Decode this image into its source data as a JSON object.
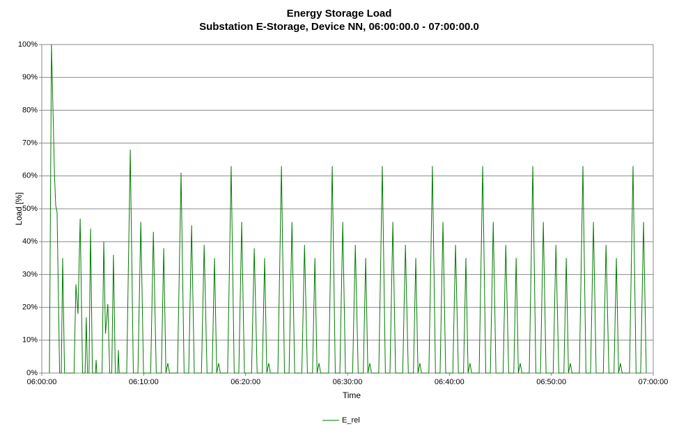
{
  "chart_data": {
    "type": "line",
    "title": "Energy Storage Load",
    "subtitle": "Substation E-Storage, Device NN, 06:00:00.0 - 07:00:00.0",
    "xlabel": "Time",
    "ylabel": "Load [%]",
    "x": [
      "06:00:45",
      "06:00:57",
      "06:01:15",
      "06:01:22",
      "06:01:30",
      "06:01:45",
      "06:01:55",
      "06:02:03",
      "06:02:14",
      "06:03:10",
      "06:03:21",
      "06:03:33",
      "06:03:46",
      "06:04:00",
      "06:04:15",
      "06:04:22",
      "06:04:29",
      "06:04:38",
      "06:04:47",
      "06:04:58",
      "06:05:16",
      "06:05:20",
      "06:05:24",
      "06:05:55",
      "06:06:05",
      "06:06:15",
      "06:06:29",
      "06:06:40",
      "06:06:52",
      "06:07:02",
      "06:07:13",
      "06:07:27",
      "06:07:31",
      "06:07:36",
      "06:08:20",
      "06:08:41",
      "06:08:59",
      "06:09:26",
      "06:09:43",
      "06:09:59",
      "06:10:41",
      "06:10:57",
      "06:11:14",
      "06:11:44",
      "06:11:58",
      "06:12:11",
      "06:12:22",
      "06:12:32",
      "06:13:19",
      "06:13:40",
      "06:13:58",
      "06:14:25",
      "06:14:42",
      "06:14:58",
      "06:15:40",
      "06:15:56",
      "06:16:13",
      "06:16:43",
      "06:16:57",
      "06:17:10",
      "06:17:21",
      "06:17:31",
      "06:18:14",
      "06:18:35",
      "06:18:53",
      "06:19:20",
      "06:19:37",
      "06:19:53",
      "06:20:35",
      "06:20:51",
      "06:21:08",
      "06:21:38",
      "06:21:52",
      "06:22:05",
      "06:22:16",
      "06:22:26",
      "06:23:10",
      "06:23:31",
      "06:23:49",
      "06:24:16",
      "06:24:33",
      "06:24:49",
      "06:25:31",
      "06:25:47",
      "06:26:04",
      "06:26:34",
      "06:26:48",
      "06:27:01",
      "06:27:12",
      "06:27:22",
      "06:28:09",
      "06:28:30",
      "06:28:48",
      "06:29:15",
      "06:29:32",
      "06:29:48",
      "06:30:30",
      "06:30:46",
      "06:31:03",
      "06:31:33",
      "06:31:47",
      "06:32:00",
      "06:32:11",
      "06:32:21",
      "06:33:04",
      "06:33:25",
      "06:33:43",
      "06:34:10",
      "06:34:27",
      "06:34:43",
      "06:35:25",
      "06:35:41",
      "06:35:58",
      "06:36:28",
      "06:36:42",
      "06:36:55",
      "06:37:06",
      "06:37:16",
      "06:37:59",
      "06:38:20",
      "06:38:38",
      "06:39:05",
      "06:39:22",
      "06:39:38",
      "06:40:20",
      "06:40:36",
      "06:40:53",
      "06:41:23",
      "06:41:37",
      "06:41:50",
      "06:42:01",
      "06:42:11",
      "06:42:55",
      "06:43:16",
      "06:43:34",
      "06:44:01",
      "06:44:18",
      "06:44:34",
      "06:45:16",
      "06:45:32",
      "06:45:49",
      "06:46:19",
      "06:46:33",
      "06:46:46",
      "06:46:57",
      "06:47:07",
      "06:47:50",
      "06:48:11",
      "06:48:29",
      "06:48:56",
      "06:49:13",
      "06:49:29",
      "06:50:11",
      "06:50:27",
      "06:50:44",
      "06:51:14",
      "06:51:28",
      "06:51:41",
      "06:51:52",
      "06:52:02",
      "06:52:45",
      "06:53:06",
      "06:53:24",
      "06:53:51",
      "06:54:08",
      "06:54:24",
      "06:55:06",
      "06:55:22",
      "06:55:39",
      "06:56:09",
      "06:56:23",
      "06:56:36",
      "06:56:47",
      "06:56:57",
      "06:57:40",
      "06:58:01",
      "06:58:19",
      "06:58:46",
      "06:59:03",
      "06:59:19"
    ],
    "series": [
      {
        "name": "E_rel",
        "color": "#007a00",
        "values": [
          0,
          100,
          60,
          51,
          49,
          0,
          0,
          35,
          0,
          0,
          27,
          18,
          47,
          0,
          0,
          17,
          0,
          0,
          44,
          0,
          0,
          4,
          0,
          0,
          40,
          12,
          21,
          0,
          0,
          36,
          0,
          0,
          7,
          0,
          0,
          68,
          0,
          0,
          46,
          0,
          0,
          43,
          0,
          0,
          38,
          0,
          3,
          0,
          0,
          61,
          0,
          0,
          45,
          0,
          0,
          39,
          0,
          0,
          35,
          0,
          3,
          0,
          0,
          63,
          0,
          0,
          46,
          0,
          0,
          38,
          0,
          0,
          35,
          0,
          3,
          0,
          0,
          63,
          0,
          0,
          46,
          0,
          0,
          39,
          0,
          0,
          35,
          0,
          3,
          0,
          0,
          63,
          0,
          0,
          46,
          0,
          0,
          39,
          0,
          0,
          35,
          0,
          3,
          0,
          0,
          63,
          0,
          0,
          46,
          0,
          0,
          39,
          0,
          0,
          35,
          0,
          3,
          0,
          0,
          63,
          0,
          0,
          46,
          0,
          0,
          39,
          0,
          0,
          35,
          0,
          3,
          0,
          0,
          63,
          0,
          0,
          46,
          0,
          0,
          39,
          0,
          0,
          35,
          0,
          3,
          0,
          0,
          63,
          0,
          0,
          46,
          0,
          0,
          39,
          0,
          0,
          35,
          0,
          3,
          0,
          0,
          63,
          0,
          0,
          46,
          0,
          0,
          39,
          0,
          0,
          35,
          0,
          3,
          0,
          0,
          63,
          0,
          0,
          46,
          0
        ]
      }
    ],
    "xlim": [
      "06:00:00",
      "07:00:00"
    ],
    "xticks": [
      "06:00:00",
      "06:10:00",
      "06:20:00",
      "06:30:00",
      "06:40:00",
      "06:50:00",
      "07:00:00"
    ],
    "ylim": [
      0,
      100
    ],
    "yticks": [
      {
        "value": 0,
        "label": "0%"
      },
      {
        "value": 10,
        "label": "10%"
      },
      {
        "value": 20,
        "label": "20%"
      },
      {
        "value": 30,
        "label": "30%"
      },
      {
        "value": 40,
        "label": "40%"
      },
      {
        "value": 50,
        "label": "50%"
      },
      {
        "value": 60,
        "label": "60%"
      },
      {
        "value": 70,
        "label": "70%"
      },
      {
        "value": 80,
        "label": "80%"
      },
      {
        "value": 90,
        "label": "90%"
      },
      {
        "value": 100,
        "label": "100%"
      }
    ],
    "grid": true,
    "legend": "bottom"
  }
}
